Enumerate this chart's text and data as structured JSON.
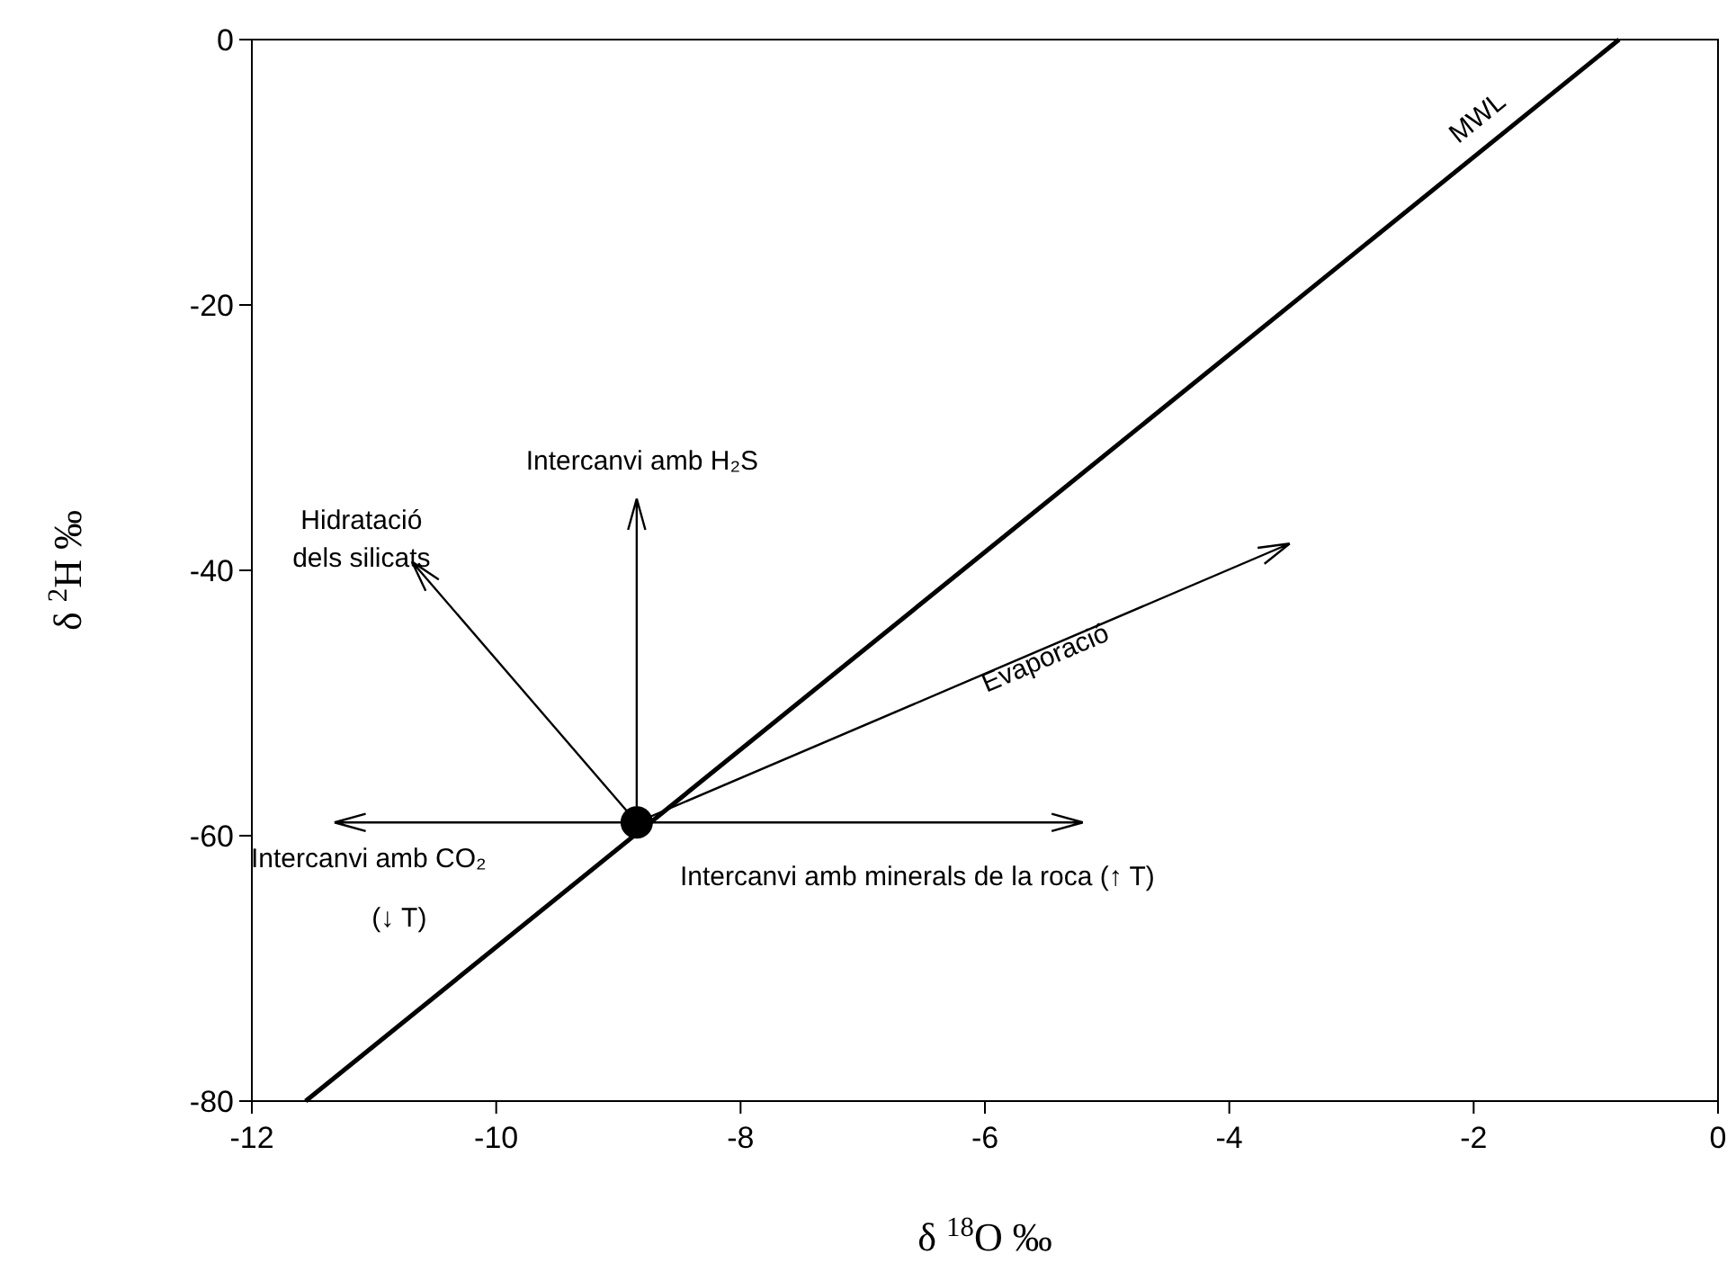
{
  "chart_data": {
    "type": "scatter",
    "xlabel": "δ $^{18}$O ‰",
    "ylabel": "δ $^{2}$H ‰",
    "xlim": [
      -12,
      0
    ],
    "ylim": [
      -80,
      0
    ],
    "xticks": [
      -12,
      -10,
      -8,
      -6,
      -4,
      -2,
      0
    ],
    "yticks": [
      -80,
      -60,
      -40,
      -20,
      0
    ],
    "grid": false,
    "series": [
      {
        "name": "MWL",
        "type": "line",
        "color": "#000000",
        "x": [
          -11.56,
          -0.81
        ],
        "values": [
          -80,
          0
        ]
      },
      {
        "color": "#000000",
        "marker": "circle",
        "x": [
          -8.85
        ],
        "values": [
          -59
        ]
      }
    ],
    "annotations": [
      "Intercanvi amb H₂S",
      "Hidratació\ndels silicats",
      "Intercanvi amb CO₂",
      "Intercanvi amb minerals de la roca (↑ T)",
      "Evaporació",
      "(↓ T)"
    ]
  }
}
